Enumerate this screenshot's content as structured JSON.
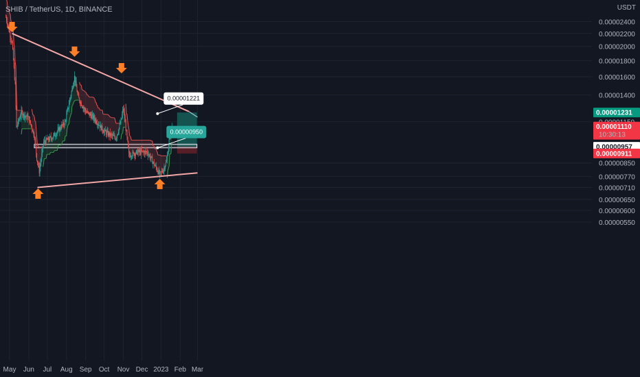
{
  "header": {
    "title": "SHIB / TetherUS, 1D, BINANCE"
  },
  "axis": {
    "unit": "USDT"
  },
  "colors": {
    "bg": "#131722",
    "grid": "#1f2330",
    "up": "#26a69a",
    "down": "#ef5350",
    "trendline": "#f4a7a7",
    "arrow": "#ff7f27",
    "stop_down": "#e05353",
    "stop_up": "#3a9d4b",
    "position_target": "#155e57",
    "position_stop": "#5e1f28",
    "band": "#d1d4dc",
    "tag_green": "#089981",
    "tag_red": "#f23645",
    "tag_white": "#ffffff"
  },
  "chart_data": {
    "type": "candlestick",
    "title": "SHIB / TetherUS, 1D, BINANCE",
    "y_scale": "log",
    "ylim": [
      5.3e-06,
      2.7e-06
    ],
    "y_ticks": [
      "0.00002400",
      "0.00002200",
      "0.00002000",
      "0.00001800",
      "0.00001600",
      "0.00001400",
      "0.00001150",
      "0.00000850",
      "0.00000770",
      "0.00000710",
      "0.00000650",
      "0.00000600",
      "0.00000550"
    ],
    "x_ticks": [
      "May",
      "Jun",
      "Jul",
      "Aug",
      "Sep",
      "Oct",
      "Nov",
      "Dec",
      "2023",
      "Feb",
      "Mar"
    ],
    "x_range": [
      "2022-05-01",
      "2023-03-01"
    ],
    "approx_close_path": [
      [
        "2022-04-25",
        2.48e-05
      ],
      [
        "2022-05-05",
        2.05e-05
      ],
      [
        "2022-05-10",
        1.5e-05
      ],
      [
        "2022-05-12",
        1.1e-05
      ],
      [
        "2022-05-20",
        1.23e-05
      ],
      [
        "2022-06-01",
        1.18e-05
      ],
      [
        "2022-06-10",
        1.04e-05
      ],
      [
        "2022-06-14",
        8.8e-06
      ],
      [
        "2022-06-18",
        8e-06
      ],
      [
        "2022-06-25",
        9.9e-06
      ],
      [
        "2022-07-10",
        1.03e-05
      ],
      [
        "2022-07-30",
        1.15e-05
      ],
      [
        "2022-08-14",
        1.6e-05
      ],
      [
        "2022-08-20",
        1.37e-05
      ],
      [
        "2022-09-01",
        1.24e-05
      ],
      [
        "2022-09-15",
        1.18e-05
      ],
      [
        "2022-10-01",
        1.07e-05
      ],
      [
        "2022-10-20",
        1.02e-05
      ],
      [
        "2022-10-28",
        1.15e-05
      ],
      [
        "2022-11-01",
        1.27e-05
      ],
      [
        "2022-11-08",
        9.8e-06
      ],
      [
        "2022-11-10",
        9e-06
      ],
      [
        "2022-11-25",
        9.2e-06
      ],
      [
        "2022-12-10",
        9.2e-06
      ],
      [
        "2022-12-30",
        7.8e-06
      ],
      [
        "2023-01-05",
        8.1e-06
      ],
      [
        "2023-01-10",
        8.6e-06
      ],
      [
        "2023-01-15",
        1.04e-05
      ],
      [
        "2023-01-19",
        1.11e-05
      ]
    ],
    "arrows": [
      {
        "date": "2022-05-05",
        "price": 2.3e-05,
        "direction": "down"
      },
      {
        "date": "2022-08-14",
        "price": 1.92e-05,
        "direction": "down"
      },
      {
        "date": "2022-10-29",
        "price": 1.7e-05,
        "direction": "down"
      },
      {
        "date": "2023-01-18",
        "price": 1.36e-05,
        "direction": "down"
      },
      {
        "date": "2022-06-16",
        "price": 6.8e-06,
        "direction": "up"
      },
      {
        "date": "2022-12-30",
        "price": 7.3e-06,
        "direction": "up"
      }
    ],
    "trendlines": [
      {
        "from": [
          "2022-05-05",
          2.2e-05
        ],
        "to": [
          "2023-02-15",
          1.24e-05
        ]
      },
      {
        "from": [
          "2022-06-15",
          7.1e-06
        ],
        "to": [
          "2023-03-01",
          7.9e-06
        ]
      }
    ],
    "support_band": {
      "from_date": "2022-06-10",
      "to_date": "2023-02-28",
      "top": 9.75e-06,
      "bottom": 9.5e-06
    },
    "position": {
      "from_date": "2023-01-27",
      "to_date": "2023-02-28",
      "entry": 9.57e-06,
      "target": 1.231e-05,
      "stop": 9.11e-06
    },
    "annotations": [
      {
        "text": "0.00001221",
        "date": "2023-02-11",
        "price": 1.221e-05
      },
      {
        "text": "0.00000950",
        "date": "2023-02-11",
        "price": 9.5e-06
      }
    ],
    "price_tags": [
      {
        "label": "0.00001231",
        "price": 1.231e-05,
        "style": "green"
      },
      {
        "label": "0.00001110",
        "sub": "10:30:13",
        "price": 1.11e-05,
        "style": "red"
      },
      {
        "label": "0.00000957",
        "price": 9.57e-06,
        "style": "white"
      },
      {
        "label": "0.00000911",
        "price": 9.11e-06,
        "style": "red"
      }
    ]
  }
}
